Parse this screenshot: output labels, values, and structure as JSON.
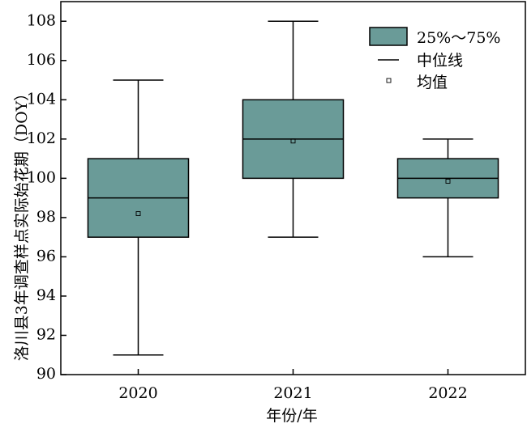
{
  "chart_data": {
    "type": "box",
    "title": "",
    "xlabel": "年份/年",
    "ylabel": "洛川县3年调查样点实际始花期（DOY）",
    "ylim": [
      90,
      109
    ],
    "yticks": [
      90,
      92,
      94,
      96,
      98,
      100,
      102,
      104,
      106,
      108
    ],
    "categories": [
      "2020",
      "2021",
      "2022"
    ],
    "series": [
      {
        "category": "2020",
        "min": 91,
        "q1": 97,
        "median": 99,
        "q3": 101,
        "max": 105,
        "mean": 98.2
      },
      {
        "category": "2021",
        "min": 97,
        "q1": 100,
        "median": 102,
        "q3": 104,
        "max": 108,
        "mean": 101.9
      },
      {
        "category": "2022",
        "min": 96,
        "q1": 99,
        "median": 100,
        "q3": 101,
        "max": 102,
        "mean": 99.85
      }
    ],
    "legend": {
      "position": "top-right",
      "box_label": "25%～75%",
      "median_label": "中位线",
      "mean_label": "均值"
    },
    "box_color": "#6a9b98",
    "grid": false
  }
}
